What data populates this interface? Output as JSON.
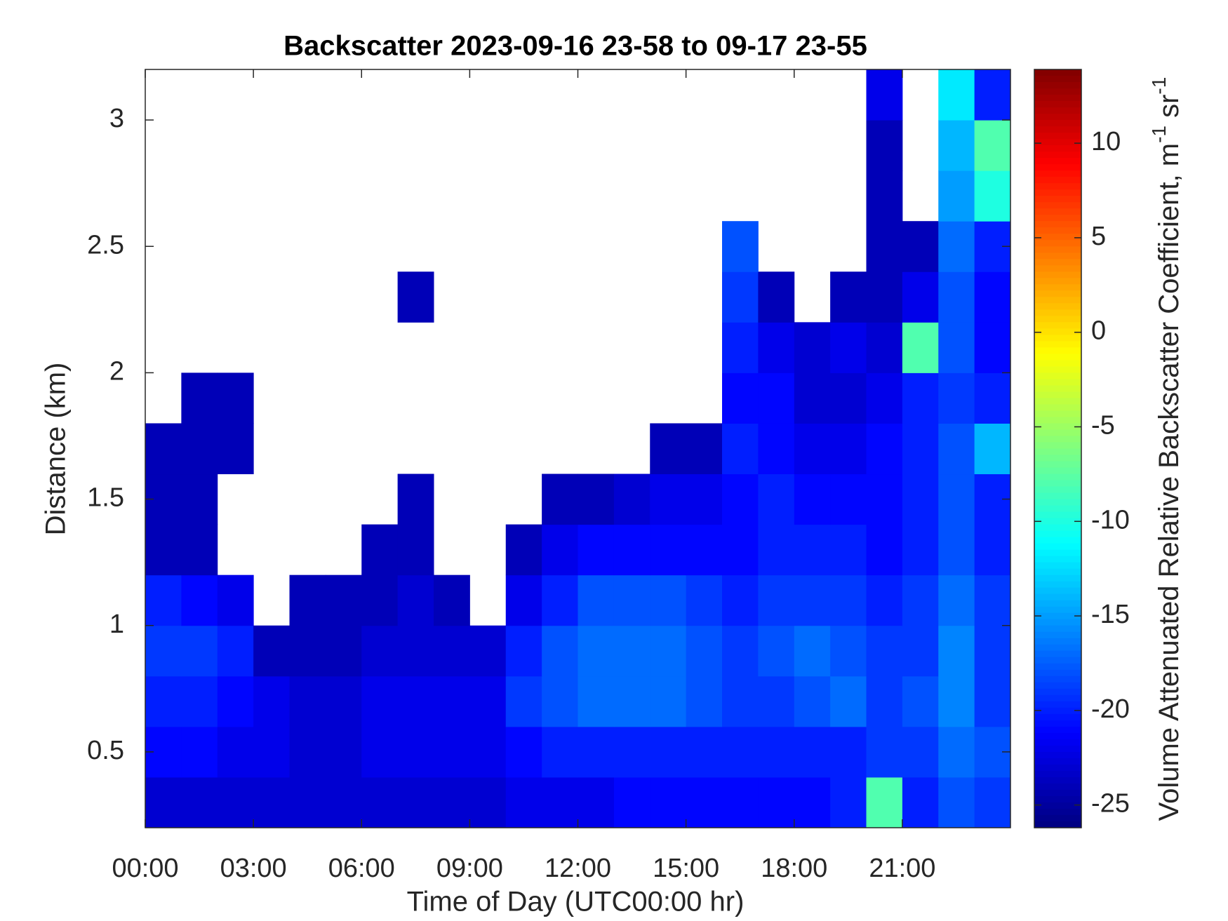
{
  "chart_data": {
    "type": "heatmap",
    "title": "Backscatter 2023-09-16 23-58 to 09-17 23-55",
    "xlabel": "Time of Day (UTC00:00 hr)",
    "ylabel": "Distance (km)",
    "colorbar_label": [
      "Volume Attenuated Relative Backscatter Coefficient, m",
      "-1",
      " sr",
      "-1"
    ],
    "colormap": "jet",
    "xlim": [
      0,
      24
    ],
    "ylim": [
      0.2,
      3.2
    ],
    "clim": [
      -26.2,
      13.9
    ],
    "xticks": [
      {
        "value": 0,
        "label": "00:00"
      },
      {
        "value": 3,
        "label": "03:00"
      },
      {
        "value": 6,
        "label": "06:00"
      },
      {
        "value": 9,
        "label": "09:00"
      },
      {
        "value": 12,
        "label": "12:00"
      },
      {
        "value": 15,
        "label": "15:00"
      },
      {
        "value": 18,
        "label": "18:00"
      },
      {
        "value": 21,
        "label": "21:00"
      }
    ],
    "yticks": [
      0.5,
      1,
      1.5,
      2,
      2.5,
      3
    ],
    "cticks": [
      -25,
      -20,
      -15,
      -10,
      -5,
      0,
      5,
      10
    ],
    "xbins": [
      0,
      1,
      2,
      3,
      4,
      5,
      6,
      7,
      8,
      9,
      10,
      11,
      12,
      13,
      14,
      15,
      16,
      17,
      18,
      19,
      20,
      21,
      22,
      23,
      24
    ],
    "ybins": [
      0.2,
      0.4,
      0.6,
      0.8,
      1.0,
      1.2,
      1.4,
      1.6,
      1.8,
      2.0,
      2.2,
      2.4,
      2.6,
      2.8,
      3.0,
      3.2
    ],
    "z": [
      [
        -23,
        -23,
        -23,
        -23,
        -23,
        -23,
        -23,
        -23,
        -23,
        -23,
        -22,
        -22,
        -22,
        -21,
        -21,
        -21,
        -21,
        -21,
        -21,
        -20,
        -8,
        -20,
        -18,
        -19
      ],
      [
        -21,
        -21,
        -22,
        -22,
        -23,
        -23,
        -22,
        -22,
        -22,
        -22,
        -21,
        -20,
        -20,
        -20,
        -20,
        -20,
        -20,
        -20,
        -20,
        -20,
        -19,
        -19,
        -17,
        -18
      ],
      [
        -20,
        -20,
        -21,
        -22,
        -23,
        -23,
        -22,
        -22,
        -22,
        -22,
        -19,
        -18,
        -17,
        -17,
        -17,
        -18,
        -19,
        -19,
        -18,
        -17,
        -19,
        -18,
        -16,
        -19
      ],
      [
        -19,
        -19,
        -20,
        -24,
        -24,
        -24,
        -23,
        -23,
        -23,
        -23,
        -20,
        -18,
        -17,
        -17,
        -17,
        -18,
        -19,
        -18,
        -17,
        -18,
        -19,
        -19,
        -16,
        -19
      ],
      [
        -20,
        -21,
        -22,
        null,
        -24,
        -24,
        -24,
        -23,
        -24,
        null,
        -22,
        -20,
        -18,
        -18,
        -18,
        -19,
        -20,
        -19,
        -19,
        -19,
        -20,
        -19,
        -17,
        -19
      ],
      [
        -24,
        -24,
        null,
        null,
        null,
        null,
        -24,
        -24,
        null,
        null,
        -24,
        -22,
        -21,
        -21,
        -21,
        -21,
        -21,
        -20,
        -20,
        -20,
        -21,
        -20,
        -18,
        -20
      ],
      [
        -24,
        -24,
        null,
        null,
        null,
        null,
        null,
        -24,
        null,
        null,
        null,
        -24,
        -24,
        -23,
        -22,
        -22,
        -21,
        -20,
        -21,
        -21,
        -21,
        -20,
        -18,
        -20
      ],
      [
        -24,
        -24,
        -24,
        null,
        null,
        null,
        null,
        null,
        null,
        null,
        null,
        null,
        null,
        null,
        -24,
        -24,
        -20,
        -21,
        -22,
        -22,
        -21,
        -20,
        -18,
        -14
      ],
      [
        null,
        -24,
        -24,
        null,
        null,
        null,
        null,
        null,
        null,
        null,
        null,
        null,
        null,
        null,
        null,
        null,
        -21,
        -21,
        -23,
        -23,
        -22,
        -20,
        -19,
        -20
      ],
      [
        null,
        null,
        null,
        null,
        null,
        null,
        null,
        null,
        null,
        null,
        null,
        null,
        null,
        null,
        null,
        null,
        -20,
        -22,
        -23,
        -22,
        -23,
        -8,
        -18,
        -21
      ],
      [
        null,
        null,
        null,
        null,
        null,
        null,
        null,
        -24,
        null,
        null,
        null,
        null,
        null,
        null,
        null,
        null,
        -19,
        -24,
        null,
        -24,
        -24,
        -22,
        -18,
        -21
      ],
      [
        null,
        null,
        null,
        null,
        null,
        null,
        null,
        null,
        null,
        null,
        null,
        null,
        null,
        null,
        null,
        null,
        -18,
        null,
        null,
        null,
        -24,
        -24,
        -17,
        -20
      ],
      [
        null,
        null,
        null,
        null,
        null,
        null,
        null,
        null,
        null,
        null,
        null,
        null,
        null,
        null,
        null,
        null,
        null,
        null,
        null,
        null,
        -24,
        null,
        -15,
        -10
      ],
      [
        null,
        null,
        null,
        null,
        null,
        null,
        null,
        null,
        null,
        null,
        null,
        null,
        null,
        null,
        null,
        null,
        null,
        null,
        null,
        null,
        -24,
        null,
        -14,
        -8
      ],
      [
        null,
        null,
        null,
        null,
        null,
        null,
        null,
        null,
        null,
        null,
        null,
        null,
        null,
        null,
        null,
        null,
        null,
        null,
        null,
        null,
        -22,
        null,
        -12,
        -20
      ]
    ]
  }
}
